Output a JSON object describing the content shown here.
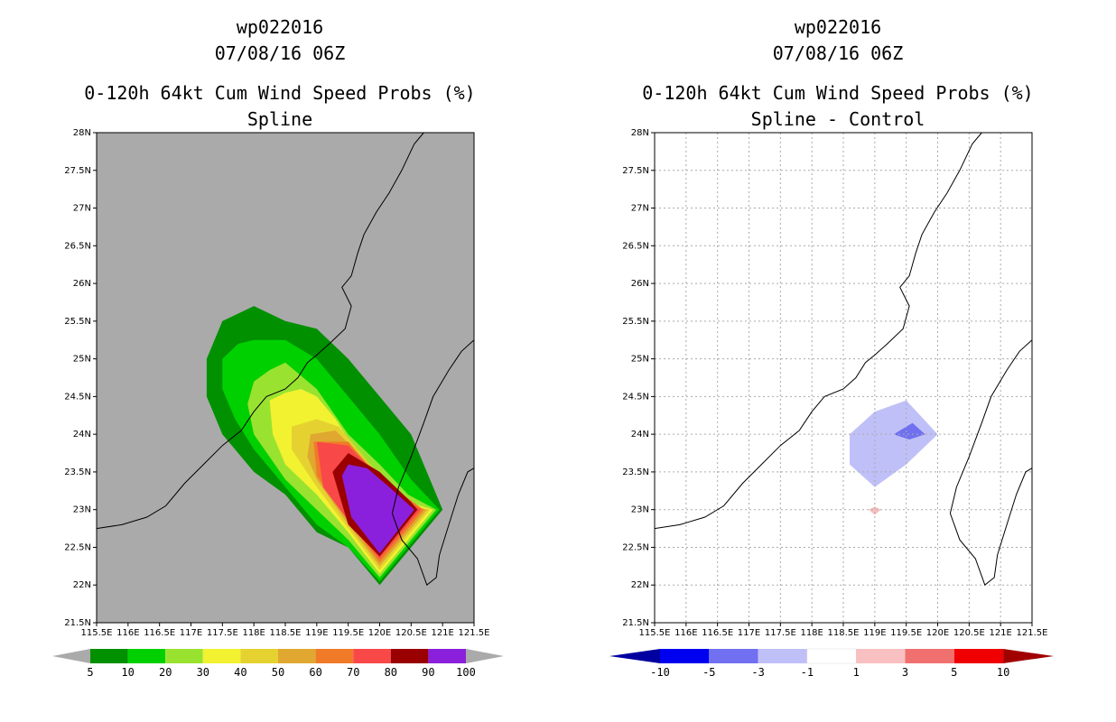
{
  "panels": [
    {
      "title_line1": "wp022016",
      "title_line2": "07/08/16 06Z",
      "heading": "0-120h 64kt Cum Wind Speed Probs (%)",
      "subheading": "Spline"
    },
    {
      "title_line1": "wp022016",
      "title_line2": "07/08/16 06Z",
      "heading": "0-120h 64kt Cum Wind Speed Probs (%)",
      "subheading": "Spline - Control"
    }
  ],
  "chart_data": [
    {
      "type": "contour-map",
      "title": "0-120h 64kt Cum Wind Speed Probs (%)",
      "subtitle": "Spline",
      "storm": "wp022016",
      "time": "07/08/16 06Z",
      "xlim": [
        115.5,
        121.5
      ],
      "ylim": [
        21.5,
        28
      ],
      "x_ticks": [
        "115.5E",
        "116E",
        "116.5E",
        "117E",
        "117.5E",
        "118E",
        "118.5E",
        "119E",
        "119.5E",
        "120E",
        "120.5E",
        "121E",
        "121.5E"
      ],
      "y_ticks": [
        "21.5N",
        "22N",
        "22.5N",
        "23N",
        "23.5N",
        "24N",
        "24.5N",
        "25N",
        "25.5N",
        "26N",
        "26.5N",
        "27N",
        "27.5N",
        "28N"
      ],
      "background": "#aaaaaa",
      "grid": false,
      "colorbar_levels": [
        "5",
        "10",
        "20",
        "30",
        "40",
        "50",
        "60",
        "70",
        "80",
        "90",
        "100"
      ],
      "colorbar_colors": [
        "#009000",
        "#00d000",
        "#99e330",
        "#f2f230",
        "#e5d230",
        "#e0a830",
        "#f07a28",
        "#f84848",
        "#9a0000",
        "#8a20dc"
      ],
      "contours": [
        {
          "level": 5,
          "color": "#009000",
          "polygon": [
            [
              117.25,
              25.0
            ],
            [
              117.5,
              25.5
            ],
            [
              118.0,
              25.7
            ],
            [
              118.5,
              25.5
            ],
            [
              119.0,
              25.4
            ],
            [
              119.5,
              25.0
            ],
            [
              120.0,
              24.5
            ],
            [
              120.5,
              24.0
            ],
            [
              121.0,
              23.0
            ],
            [
              120.0,
              22.0
            ],
            [
              119.5,
              22.5
            ],
            [
              119.0,
              22.7
            ],
            [
              118.5,
              23.2
            ],
            [
              118.0,
              23.5
            ],
            [
              117.5,
              24.0
            ],
            [
              117.25,
              24.5
            ]
          ]
        },
        {
          "level": 10,
          "color": "#00d000",
          "polygon": [
            [
              117.5,
              24.6
            ],
            [
              117.5,
              25.0
            ],
            [
              117.75,
              25.2
            ],
            [
              118.0,
              25.25
            ],
            [
              118.5,
              25.25
            ],
            [
              119.0,
              25.0
            ],
            [
              119.5,
              24.5
            ],
            [
              120.0,
              24.0
            ],
            [
              120.5,
              23.4
            ],
            [
              120.95,
              23.0
            ],
            [
              120.0,
              22.05
            ],
            [
              119.5,
              22.5
            ],
            [
              119.0,
              22.8
            ],
            [
              118.5,
              23.3
            ],
            [
              118.0,
              23.8
            ],
            [
              117.7,
              24.2
            ]
          ]
        },
        {
          "level": 20,
          "color": "#99e330",
          "polygon": [
            [
              117.9,
              24.4
            ],
            [
              118.0,
              24.7
            ],
            [
              118.25,
              24.85
            ],
            [
              118.5,
              24.95
            ],
            [
              119.0,
              24.6
            ],
            [
              119.5,
              24.0
            ],
            [
              120.0,
              23.6
            ],
            [
              120.45,
              23.2
            ],
            [
              120.9,
              23.0
            ],
            [
              120.0,
              22.1
            ],
            [
              119.5,
              22.6
            ],
            [
              119.0,
              23.0
            ],
            [
              118.5,
              23.4
            ],
            [
              118.0,
              24.0
            ]
          ]
        },
        {
          "level": 30,
          "color": "#f2f230",
          "polygon": [
            [
              118.25,
              24.45
            ],
            [
              118.5,
              24.55
            ],
            [
              118.75,
              24.6
            ],
            [
              119.0,
              24.5
            ],
            [
              119.3,
              24.2
            ],
            [
              119.6,
              23.8
            ],
            [
              120.0,
              23.45
            ],
            [
              120.45,
              23.1
            ],
            [
              120.85,
              23.0
            ],
            [
              120.0,
              22.15
            ],
            [
              119.5,
              22.7
            ],
            [
              119.0,
              23.2
            ],
            [
              118.5,
              23.6
            ],
            [
              118.3,
              24.0
            ]
          ]
        },
        {
          "level": 40,
          "color": "#e5d230",
          "polygon": [
            [
              118.6,
              24.1
            ],
            [
              119.0,
              24.2
            ],
            [
              119.35,
              24.1
            ],
            [
              119.7,
              23.75
            ],
            [
              120.05,
              23.4
            ],
            [
              120.5,
              23.05
            ],
            [
              120.8,
              23.0
            ],
            [
              120.0,
              22.2
            ],
            [
              119.5,
              22.75
            ],
            [
              119.0,
              23.3
            ],
            [
              118.6,
              23.8
            ]
          ]
        },
        {
          "level": 50,
          "color": "#e0a830",
          "polygon": [
            [
              118.9,
              24.0
            ],
            [
              119.3,
              24.05
            ],
            [
              119.6,
              23.8
            ],
            [
              120.05,
              23.4
            ],
            [
              120.5,
              23.05
            ],
            [
              120.75,
              23.0
            ],
            [
              120.0,
              22.25
            ],
            [
              119.5,
              22.8
            ],
            [
              119.0,
              23.4
            ],
            [
              118.85,
              23.7
            ]
          ]
        },
        {
          "level": 60,
          "color": "#f07a28",
          "polygon": [
            [
              118.95,
              23.9
            ],
            [
              119.5,
              23.9
            ],
            [
              119.8,
              23.6
            ],
            [
              120.2,
              23.3
            ],
            [
              120.7,
              23.0
            ],
            [
              120.0,
              22.3
            ],
            [
              119.5,
              22.85
            ],
            [
              119.0,
              23.45
            ]
          ]
        },
        {
          "level": 70,
          "color": "#f84848",
          "polygon": [
            [
              119.0,
              23.9
            ],
            [
              119.5,
              23.85
            ],
            [
              119.85,
              23.55
            ],
            [
              120.3,
              23.2
            ],
            [
              120.65,
              23.0
            ],
            [
              120.0,
              22.35
            ],
            [
              119.55,
              22.8
            ],
            [
              119.1,
              23.3
            ]
          ]
        },
        {
          "level": 80,
          "color": "#9a0000",
          "polygon": [
            [
              119.25,
              23.5
            ],
            [
              119.5,
              23.75
            ],
            [
              120.0,
              23.5
            ],
            [
              120.5,
              23.1
            ],
            [
              120.6,
              23.0
            ],
            [
              120.0,
              22.38
            ],
            [
              119.5,
              22.8
            ]
          ]
        },
        {
          "level": 90,
          "color": "#8a20dc",
          "polygon": [
            [
              119.4,
              23.45
            ],
            [
              119.5,
              23.6
            ],
            [
              119.8,
              23.55
            ],
            [
              120.15,
              23.3
            ],
            [
              120.55,
              23.0
            ],
            [
              120.0,
              22.42
            ],
            [
              119.55,
              22.9
            ]
          ]
        }
      ]
    },
    {
      "type": "contour-map",
      "title": "0-120h 64kt Cum Wind Speed Probs (%)",
      "subtitle": "Spline - Control",
      "storm": "wp022016",
      "time": "07/08/16 06Z",
      "xlim": [
        115.5,
        121.5
      ],
      "ylim": [
        21.5,
        28
      ],
      "x_ticks": [
        "115.5E",
        "116E",
        "116.5E",
        "117E",
        "117.5E",
        "118E",
        "118.5E",
        "119E",
        "119.5E",
        "120E",
        "120.5E",
        "121E",
        "121.5E"
      ],
      "y_ticks": [
        "21.5N",
        "22N",
        "22.5N",
        "23N",
        "23.5N",
        "24N",
        "24.5N",
        "25N",
        "25.5N",
        "26N",
        "26.5N",
        "27N",
        "27.5N",
        "28N"
      ],
      "background": "#ffffff",
      "grid": true,
      "colorbar_levels": [
        "-10",
        "-5",
        "-3",
        "-1",
        "1",
        "3",
        "5",
        "10"
      ],
      "colorbar_colors": [
        "#0000a0",
        "#0000f0",
        "#7070f0",
        "#c0c0f8",
        "#ffffff",
        "#f8c0c0",
        "#f07070",
        "#f00000",
        "#a00000"
      ],
      "contours": [
        {
          "level": -1,
          "color": "#c0c0f8",
          "polygon": [
            [
              118.6,
              24.0
            ],
            [
              119.0,
              24.3
            ],
            [
              119.5,
              24.45
            ],
            [
              120.0,
              24.0
            ],
            [
              119.5,
              23.6
            ],
            [
              119.0,
              23.3
            ],
            [
              118.6,
              23.6
            ]
          ]
        },
        {
          "level": -3,
          "color": "#7070f0",
          "polygon": [
            [
              119.3,
              24.0
            ],
            [
              119.6,
              24.15
            ],
            [
              119.8,
              24.0
            ],
            [
              119.55,
              23.93
            ]
          ]
        },
        {
          "level": 1,
          "color": "#f8c0c0",
          "polygon": [
            [
              118.9,
              23.0
            ],
            [
              119.0,
              23.04
            ],
            [
              119.1,
              23.0
            ],
            [
              119.0,
              22.93
            ]
          ]
        }
      ]
    }
  ]
}
